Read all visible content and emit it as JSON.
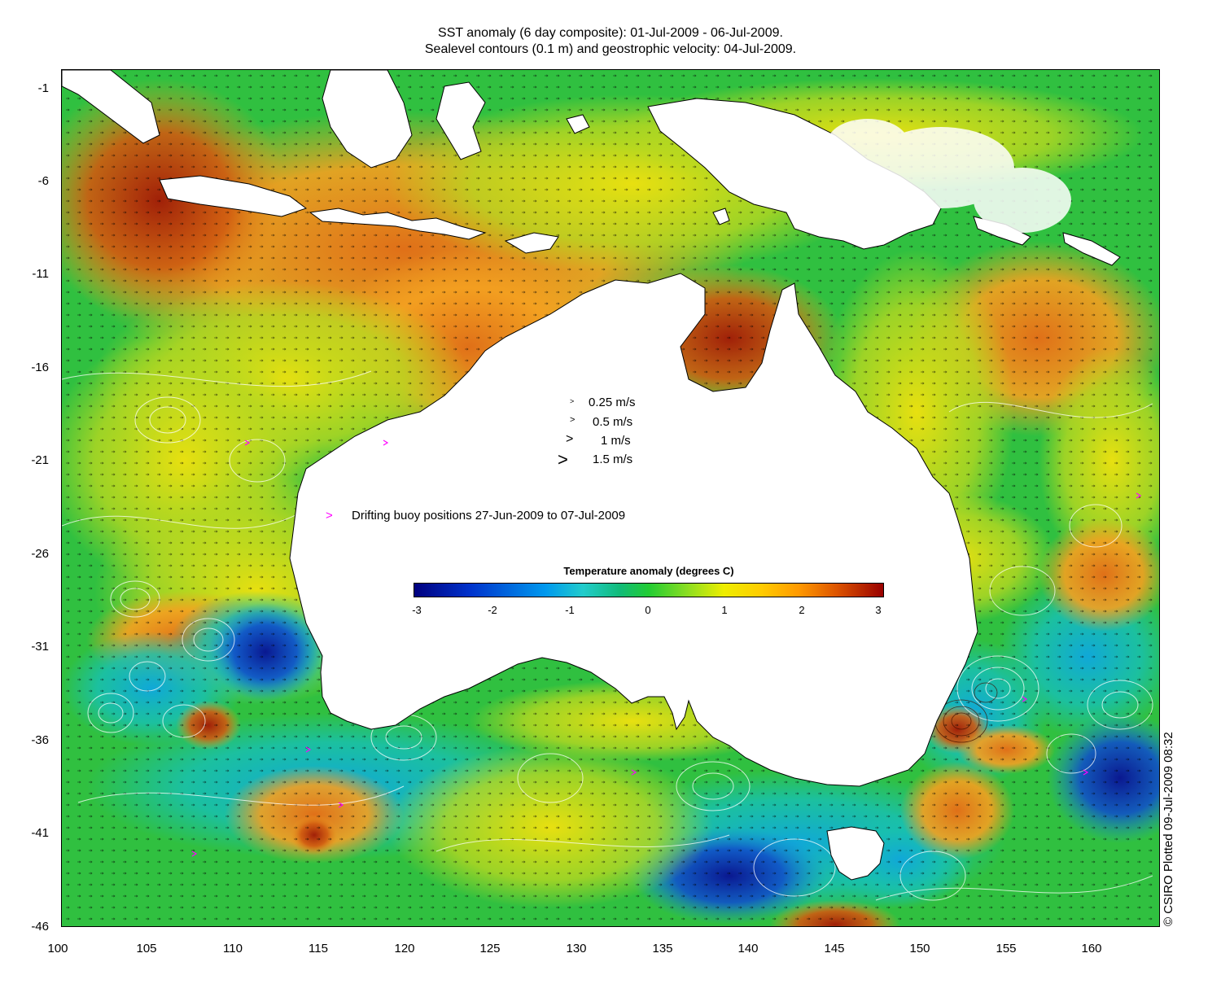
{
  "title": {
    "line1": "SST anomaly (6 day composite): 01-Jul-2009 - 06-Jul-2009.",
    "line2": "Sealevel contours (0.1 m) and geostrophic velocity: 04-Jul-2009."
  },
  "axes": {
    "x_ticks": [
      "100",
      "105",
      "110",
      "115",
      "120",
      "125",
      "130",
      "135",
      "140",
      "145",
      "150",
      "155",
      "160"
    ],
    "y_ticks": [
      "-1",
      "-6",
      "-11",
      "-16",
      "-21",
      "-26",
      "-31",
      "-36",
      "-41",
      "-46"
    ],
    "x_range": [
      100,
      164
    ],
    "y_range": [
      -46,
      0
    ]
  },
  "velocity_legend": [
    {
      "glyph": ">",
      "label": "0.25 m/s"
    },
    {
      "glyph": ">",
      "label": "0.5 m/s"
    },
    {
      "glyph": ">",
      "label": "1 m/s"
    },
    {
      "glyph": ">",
      "label": "1.5 m/s"
    }
  ],
  "buoy_legend": {
    "glyph": ">",
    "label": "Drifting buoy positions 27-Jun-2009 to 07-Jul-2009",
    "color": "#ff00ff"
  },
  "colorbar": {
    "title": "Temperature anomaly (degrees C)",
    "ticks": [
      "-3",
      "-2",
      "-1",
      "0",
      "1",
      "2",
      "3"
    ],
    "range": [
      -3,
      3
    ]
  },
  "copyright": "© CSIRO Plotted 09-Jul-2009 08:32",
  "colors": {
    "land": "#ffffff",
    "ocean_neutral": "#22c040",
    "warm": "#f5a020",
    "cool": "#18a0d8",
    "cold": "#1030b0",
    "contour": "#ffffff",
    "coast": "#000000"
  }
}
